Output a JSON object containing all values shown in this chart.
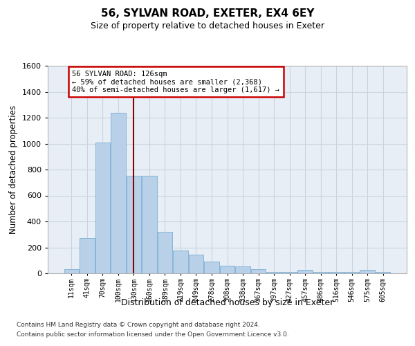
{
  "title1": "56, SYLVAN ROAD, EXETER, EX4 6EY",
  "title2": "Size of property relative to detached houses in Exeter",
  "xlabel": "Distribution of detached houses by size in Exeter",
  "ylabel": "Number of detached properties",
  "categories": [
    "11sqm",
    "41sqm",
    "70sqm",
    "100sqm",
    "130sqm",
    "160sqm",
    "189sqm",
    "219sqm",
    "249sqm",
    "278sqm",
    "308sqm",
    "338sqm",
    "367sqm",
    "397sqm",
    "427sqm",
    "457sqm",
    "486sqm",
    "516sqm",
    "546sqm",
    "575sqm",
    "605sqm"
  ],
  "values": [
    30,
    270,
    1010,
    1240,
    750,
    750,
    320,
    175,
    145,
    90,
    60,
    55,
    30,
    10,
    10,
    25,
    10,
    10,
    10,
    25,
    10
  ],
  "bar_color": "#b8d0e8",
  "bar_edge_color": "#7aafd4",
  "ylim_max": 1600,
  "yticks": [
    0,
    200,
    400,
    600,
    800,
    1000,
    1200,
    1400,
    1600
  ],
  "property_line_x": 4.0,
  "annotation_text1": "56 SYLVAN ROAD: 126sqm",
  "annotation_text2": "← 59% of detached houses are smaller (2,368)",
  "annotation_text3": "40% of semi-detached houses are larger (1,617) →",
  "vline_color": "#8b0000",
  "annotation_border_color": "#cc0000",
  "grid_color": "#c8d4e0",
  "background_color": "#e8eef5",
  "footer1": "Contains HM Land Registry data © Crown copyright and database right 2024.",
  "footer2": "Contains public sector information licensed under the Open Government Licence v3.0."
}
